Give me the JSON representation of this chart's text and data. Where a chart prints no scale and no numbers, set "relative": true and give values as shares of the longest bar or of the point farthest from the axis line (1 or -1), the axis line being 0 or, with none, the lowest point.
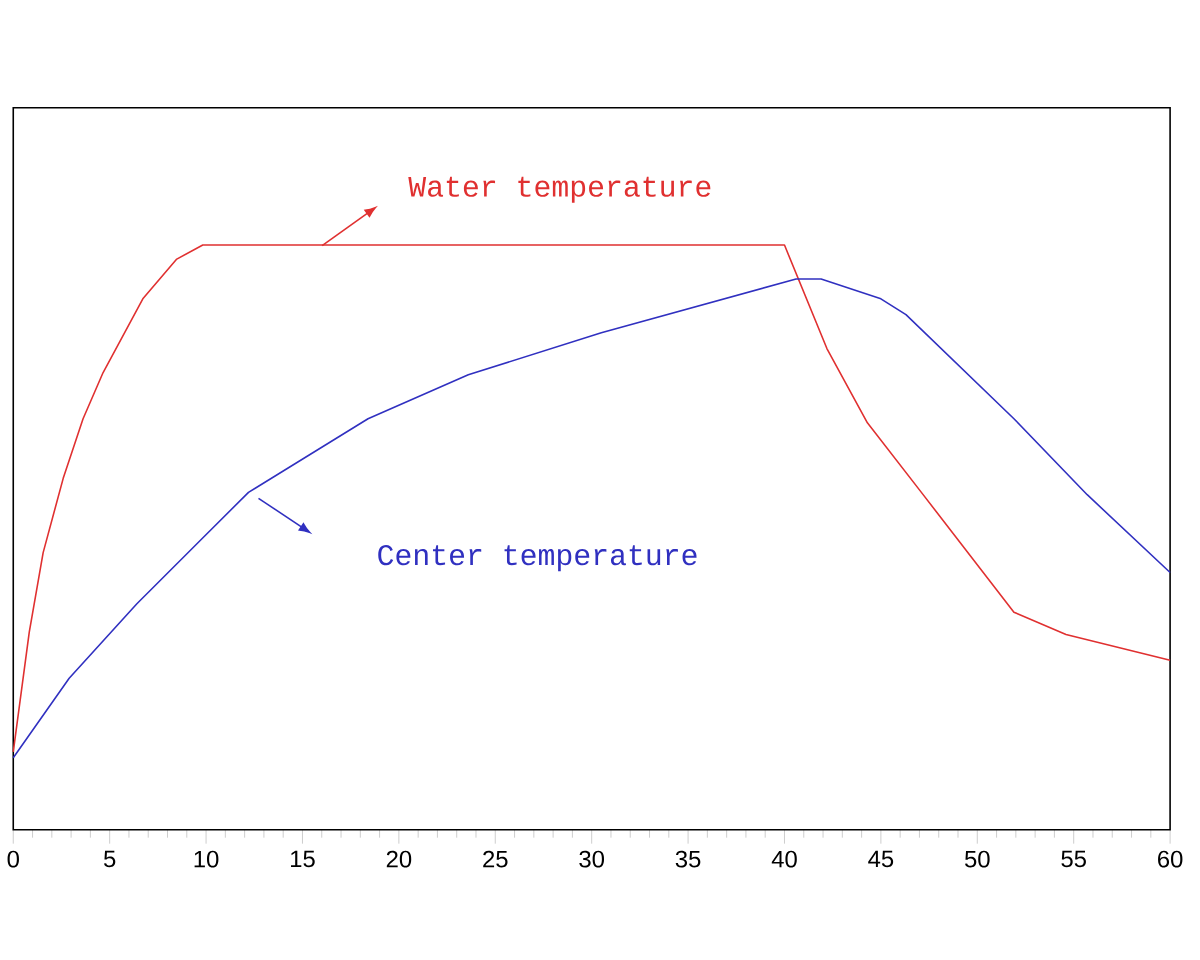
{
  "chart_data": {
    "type": "line",
    "relative": true,
    "xlim": [
      0,
      60
    ],
    "xticks": [
      0,
      5,
      10,
      15,
      20,
      25,
      30,
      35,
      40,
      45,
      50,
      55,
      60
    ],
    "series": [
      {
        "color": "#e03030",
        "x": [
          0,
          0.83,
          1.55,
          2.59,
          3.62,
          4.66,
          6.72,
          8.48,
          9.83,
          40.0,
          42.2,
          44.3,
          47.1,
          51.9,
          54.6,
          60
        ],
        "values": [
          0.133,
          0.338,
          0.474,
          0.601,
          0.703,
          0.782,
          0.908,
          0.976,
          1,
          1,
          0.823,
          0.696,
          0.577,
          0.372,
          0.334,
          0.29
        ]
      },
      {
        "color": "#3030c0",
        "x": [
          0,
          2.9,
          6.4,
          9.8,
          12.2,
          18.4,
          23.6,
          30.5,
          40.6,
          41.9,
          45,
          46.3,
          51.9,
          55.7,
          60
        ],
        "values": [
          0.123,
          0.259,
          0.386,
          0.498,
          0.577,
          0.703,
          0.778,
          0.85,
          0.942,
          0.942,
          0.908,
          0.881,
          0.703,
          0.573,
          0.44
        ]
      }
    ],
    "annotations": [
      "Water temperature",
      "Center temperature"
    ]
  }
}
